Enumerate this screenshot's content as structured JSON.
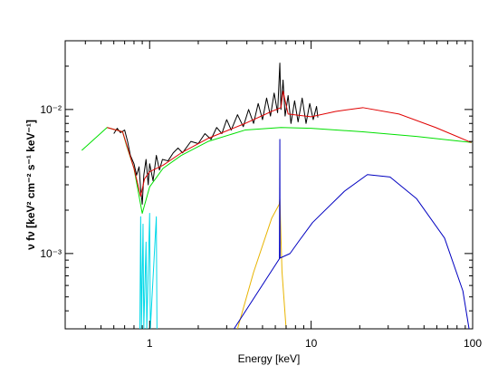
{
  "chart_data": {
    "type": "line",
    "xlabel": "Energy [keV]",
    "ylabel": "ν fν [keV² cm⁻² s⁻¹ keV⁻¹]",
    "xscale": "log",
    "yscale": "log",
    "xlim": [
      0.3,
      100
    ],
    "ylim": [
      0.0003,
      0.03
    ],
    "xticks": [
      1,
      10,
      100
    ],
    "xminorticks": [
      0.3,
      0.4,
      0.5,
      0.6,
      0.7,
      0.8,
      0.9,
      2,
      3,
      4,
      5,
      6,
      7,
      8,
      9,
      20,
      30,
      40,
      50,
      60,
      70,
      80,
      90
    ],
    "yticks": [
      {
        "value": 0.01,
        "label": "10⁻²"
      },
      {
        "value": 0.001,
        "label": "10⁻³"
      }
    ],
    "yminorticks": [
      0.0004,
      0.0005,
      0.0006,
      0.0007,
      0.0008,
      0.0009,
      0.002,
      0.003,
      0.004,
      0.005,
      0.006,
      0.007,
      0.008,
      0.009,
      0.02
    ],
    "series": [
      {
        "color": "#00d8e8",
        "x": [
          0.87,
          0.88,
          0.89,
          0.91,
          0.92,
          0.95,
          0.96,
          1.0,
          1.01,
          1.1,
          1.11
        ],
        "values": [
          0.0003,
          0.0018,
          0.0003,
          0.0016,
          0.0003,
          0.0012,
          0.0003,
          0.0019,
          0.0003,
          0.0018,
          0.0003
        ]
      },
      {
        "color": "#000000",
        "x": [
          0.6,
          0.63,
          0.66,
          0.7,
          0.73,
          0.76,
          0.8,
          0.83,
          0.86,
          0.88,
          0.9,
          0.92,
          0.95,
          0.98,
          1.0,
          1.05,
          1.1,
          1.15,
          1.2,
          1.3,
          1.4,
          1.5,
          1.6,
          1.8,
          2.0,
          2.2,
          2.4,
          2.6,
          2.8,
          3.0,
          3.2,
          3.5,
          3.8,
          4.1,
          4.4,
          4.7,
          5.0,
          5.3,
          5.6,
          5.9,
          6.2,
          6.4,
          6.5,
          6.7,
          6.9,
          7.2,
          7.5,
          7.9,
          8.3,
          8.8,
          9.3,
          9.8,
          10.3,
          10.8,
          11.0
        ],
        "values": [
          0.0068,
          0.0074,
          0.0069,
          0.0072,
          0.006,
          0.0048,
          0.0042,
          0.0035,
          0.004,
          0.0028,
          0.0022,
          0.0035,
          0.0045,
          0.003,
          0.0042,
          0.0032,
          0.0048,
          0.0038,
          0.0045,
          0.0044,
          0.005,
          0.0054,
          0.005,
          0.006,
          0.0058,
          0.0068,
          0.0062,
          0.0075,
          0.0068,
          0.0085,
          0.0072,
          0.0092,
          0.0076,
          0.01,
          0.008,
          0.011,
          0.0085,
          0.012,
          0.009,
          0.013,
          0.0095,
          0.021,
          0.01,
          0.016,
          0.009,
          0.0125,
          0.008,
          0.0115,
          0.0082,
          0.012,
          0.008,
          0.011,
          0.0085,
          0.0105,
          0.0088
        ]
      },
      {
        "color": "#00e000",
        "x": [
          0.38,
          0.545,
          0.68,
          0.72,
          0.8,
          0.9,
          1.0,
          1.21,
          1.57,
          2.3,
          3.9,
          6.5,
          10,
          20.9,
          45,
          98.6
        ],
        "values": [
          0.0052,
          0.0075,
          0.007,
          0.0056,
          0.0039,
          0.0019,
          0.0029,
          0.0039,
          0.0048,
          0.006,
          0.0072,
          0.0075,
          0.0074,
          0.007,
          0.0065,
          0.0059
        ]
      },
      {
        "color": "#e8b400",
        "x": [
          3.5,
          4.4,
          5.7,
          6.35,
          6.4,
          6.6,
          7.0
        ],
        "values": [
          0.0003,
          0.00074,
          0.00176,
          0.0022,
          0.0024,
          0.00075,
          0.0003
        ]
      },
      {
        "color": "#0000c0",
        "x": [
          3.33,
          6.36,
          6.4,
          6.42,
          7.4,
          8.4,
          10.2,
          16.1,
          22.3,
          30.8,
          45,
          67,
          87,
          95
        ],
        "values": [
          0.0003,
          0.00092,
          0.0062,
          0.00093,
          0.001,
          0.00122,
          0.00164,
          0.00271,
          0.00353,
          0.0034,
          0.0024,
          0.00128,
          0.00055,
          0.0003
        ]
      },
      {
        "color": "#e00000",
        "x": [
          0.545,
          0.68,
          0.8,
          0.88,
          0.93,
          1.0,
          1.21,
          1.57,
          2.3,
          3.9,
          5.7,
          6.5,
          6.7,
          7.2,
          10,
          14.2,
          20.9,
          35,
          59,
          98
        ],
        "values": [
          0.0075,
          0.007,
          0.0039,
          0.0025,
          0.0033,
          0.0037,
          0.0041,
          0.005,
          0.0063,
          0.008,
          0.0097,
          0.0103,
          0.0134,
          0.0093,
          0.0089,
          0.0097,
          0.0103,
          0.0093,
          0.0075,
          0.0059
        ]
      }
    ]
  }
}
